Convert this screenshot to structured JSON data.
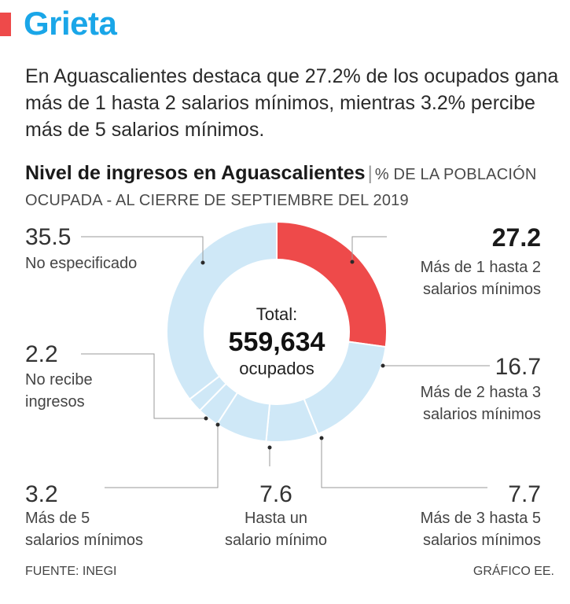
{
  "brand": "Grieta",
  "intro": "En Aguascalientes destaca que 27.2% de los ocupados gana más de 1 hasta 2 salarios mínimos, mientras 3.2% percibe más de 5 salarios mínimos.",
  "colors": {
    "accent": "#ee4a4a",
    "brand": "#1aa6e8",
    "base": "#cfe8f7",
    "line": "#9a9a9a",
    "separator": "#ffffff"
  },
  "chart_data": {
    "type": "donut",
    "title": "Nivel de ingresos en Aguascalientes",
    "subtitle": "% DE LA POBLACIÓN OCUPADA - AL CIERRE DE SEPTIEMBRE DEL 2019",
    "center": {
      "top": "Total:",
      "value": "559,634",
      "bottom": "ocupados"
    },
    "unit": "%",
    "slices": [
      {
        "value": 27.2,
        "display": "27.2",
        "label": [
          "Más de 1 hasta 2",
          "salarios mínimos"
        ],
        "highlight": true
      },
      {
        "value": 16.7,
        "display": "16.7",
        "label": [
          "Más de 2 hasta 3",
          "salarios mínimos"
        ],
        "highlight": false
      },
      {
        "value": 7.7,
        "display": "7.7",
        "label": [
          "Más de 3 hasta 5",
          "salarios mínimos"
        ],
        "highlight": false
      },
      {
        "value": 7.6,
        "display": "7.6",
        "label": [
          "Hasta un",
          "salario mínimo"
        ],
        "highlight": false
      },
      {
        "value": 3.2,
        "display": "3.2",
        "label": [
          "Más de 5",
          "salarios mínimos"
        ],
        "highlight": false
      },
      {
        "value": 2.2,
        "display": "2.2",
        "label": [
          "No recibe",
          "ingresos"
        ],
        "highlight": false
      },
      {
        "value": 35.5,
        "display": "35.5",
        "label": [
          "No especificado"
        ],
        "highlight": false
      }
    ]
  },
  "footer": {
    "source": "FUENTE: INEGI",
    "credit": "GRÁFICO EE."
  }
}
